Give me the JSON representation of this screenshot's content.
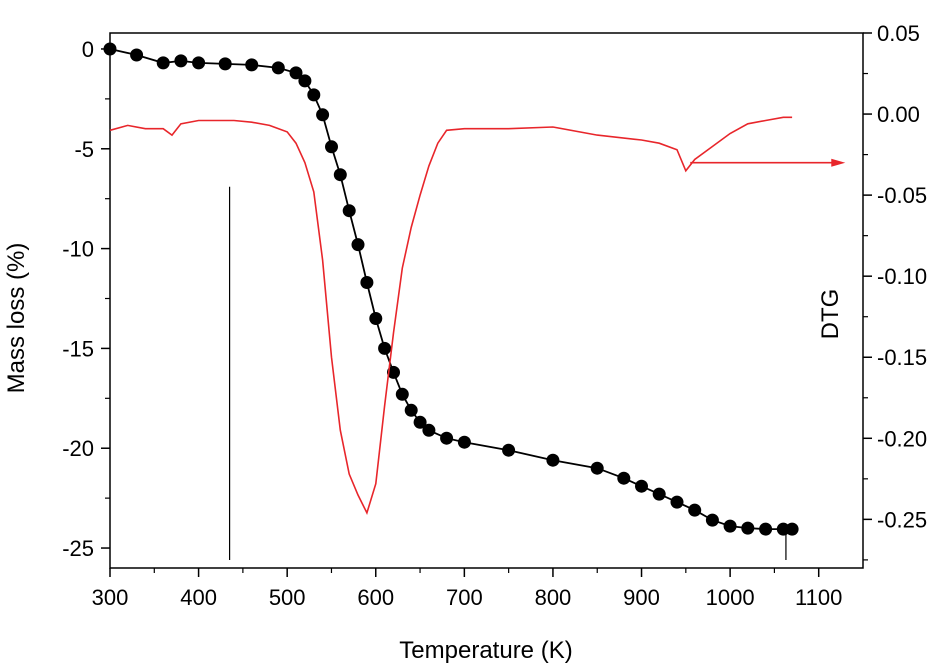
{
  "chart_data": {
    "type": "line",
    "title": "",
    "xlabel": "Temperature (K)",
    "ylabel_left": "Mass loss (%)",
    "ylabel_right": "DTG",
    "xlim": [
      300,
      1150
    ],
    "ylim_left": [
      -26,
      0.8
    ],
    "ylim_right": [
      -0.28,
      0.05
    ],
    "grid": false,
    "legend": "none",
    "x_ticks": [
      300,
      400,
      500,
      600,
      700,
      800,
      900,
      1000,
      1100
    ],
    "y_left_ticks": [
      0,
      -5,
      -10,
      -15,
      -20,
      -25
    ],
    "y_right_ticks": [
      0.05,
      0.0,
      -0.05,
      -0.1,
      -0.15,
      -0.2,
      -0.25
    ],
    "y_right_tick_labels": [
      "0.05",
      "0.00",
      "-0.05",
      "-0.10",
      "-0.15",
      "-0.20",
      "-0.25"
    ],
    "series": [
      {
        "axis": "left",
        "style": "line-with-markers",
        "color": "#000000",
        "x": [
          300,
          330,
          360,
          380,
          400,
          430,
          460,
          490,
          510,
          520,
          530,
          540,
          550,
          560,
          570,
          580,
          590,
          600,
          610,
          620,
          630,
          640,
          650,
          660,
          680,
          700,
          750,
          800,
          850,
          880,
          900,
          920,
          940,
          960,
          980,
          1000,
          1020,
          1040,
          1060,
          1070
        ],
        "y": [
          0,
          -0.3,
          -0.7,
          -0.6,
          -0.7,
          -0.75,
          -0.8,
          -0.95,
          -1.2,
          -1.6,
          -2.3,
          -3.3,
          -4.9,
          -6.3,
          -8.1,
          -9.8,
          -11.7,
          -13.5,
          -15.0,
          -16.2,
          -17.3,
          -18.1,
          -18.7,
          -19.1,
          -19.5,
          -19.7,
          -20.1,
          -20.6,
          -21.0,
          -21.5,
          -21.9,
          -22.3,
          -22.7,
          -23.1,
          -23.6,
          -23.9,
          -24.0,
          -24.05,
          -24.05,
          -24.05
        ]
      },
      {
        "axis": "right",
        "style": "line",
        "color": "#e8262b",
        "x": [
          300,
          320,
          340,
          360,
          370,
          380,
          400,
          420,
          440,
          460,
          480,
          500,
          510,
          520,
          530,
          540,
          550,
          560,
          570,
          580,
          590,
          600,
          610,
          620,
          630,
          640,
          650,
          660,
          670,
          680,
          700,
          750,
          800,
          850,
          900,
          920,
          940,
          950,
          960,
          980,
          1000,
          1020,
          1040,
          1060,
          1070
        ],
        "y": [
          -0.01,
          -0.007,
          -0.009,
          -0.009,
          -0.013,
          -0.006,
          -0.004,
          -0.004,
          -0.004,
          -0.005,
          -0.007,
          -0.011,
          -0.018,
          -0.03,
          -0.048,
          -0.09,
          -0.15,
          -0.195,
          -0.222,
          -0.235,
          -0.246,
          -0.228,
          -0.18,
          -0.135,
          -0.095,
          -0.07,
          -0.05,
          -0.032,
          -0.018,
          -0.01,
          -0.009,
          -0.009,
          -0.008,
          -0.013,
          -0.016,
          -0.018,
          -0.022,
          -0.035,
          -0.028,
          -0.02,
          -0.012,
          -0.006,
          -0.004,
          -0.002,
          -0.002
        ]
      }
    ],
    "annotations": [
      {
        "type": "arrow",
        "color": "#e8262b",
        "from_x": 955,
        "to_x": 1130,
        "y_right": -0.03,
        "direction": "right"
      },
      {
        "type": "vertical-line",
        "color": "#000000",
        "x": 435,
        "y_from": -25.6,
        "y_to": -6.9
      },
      {
        "type": "vertical-line",
        "color": "#000000",
        "x": 1063,
        "y_from": -25.6,
        "y_to": -24.1
      }
    ]
  }
}
